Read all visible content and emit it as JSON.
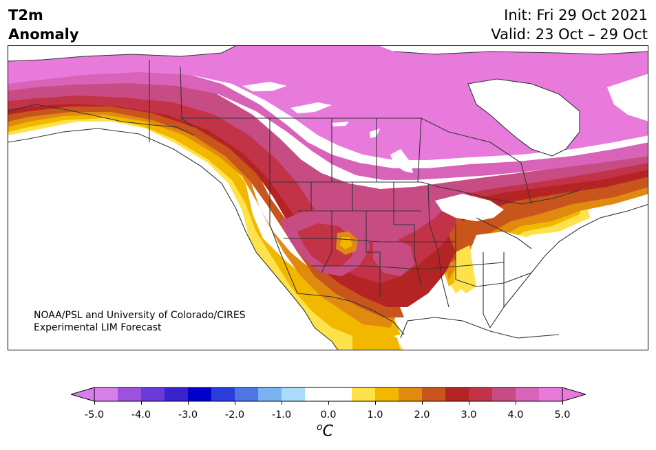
{
  "header": {
    "variable_line1": "T2m",
    "variable_line2": "Anomaly",
    "init_line": "Init: Fri 29 Oct 2021",
    "valid_line": "Valid: 23 Oct – 29 Oct"
  },
  "credit": {
    "line1": "NOAA/PSL and University of Colorado/CIRES",
    "line2": "Experimental LIM Forecast"
  },
  "colorbar": {
    "units_base": "C",
    "units_sup": "o",
    "min": -5.0,
    "max": 5.0,
    "step": 0.5,
    "extend": "both",
    "tick_labels": [
      "-5.0",
      "-4.0",
      "-3.0",
      "-2.0",
      "-1.0",
      "0.0",
      "1.0",
      "2.0",
      "3.0",
      "4.0",
      "5.0"
    ],
    "colors": [
      "#d77ee8",
      "#9c52de",
      "#6a3ad9",
      "#3a22cf",
      "#0000cc",
      "#2a3ddb",
      "#4f75e3",
      "#79b3f2",
      "#aadcfa",
      "#ffffff",
      "#ffffff",
      "#fde24b",
      "#f2b800",
      "#e08a10",
      "#c8561c",
      "#b52424",
      "#c23348",
      "#c84c84",
      "#d963b9",
      "#e87adc"
    ]
  },
  "map": {
    "region": "North America",
    "palette": {
      "magenta": "#e87adc",
      "pink": "#d963b9",
      "rose": "#c84c84",
      "crimson": "#c23348",
      "red": "#b52424",
      "brick": "#c8561c",
      "orange": "#e08a10",
      "gold": "#f2b800",
      "yellow": "#fde24b",
      "light_blue": "#aadcfa",
      "land_white": "#ffffff",
      "boundary": "#333333"
    }
  }
}
